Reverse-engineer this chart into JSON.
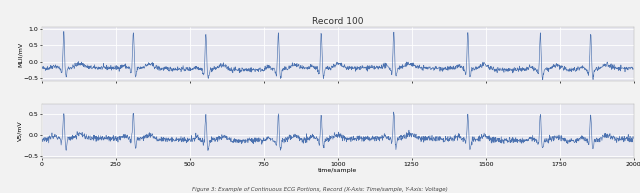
{
  "title": "Record 100",
  "xlabel": "time/sample",
  "ylabel1": "MLII/mV",
  "ylabel2": "V5/mV",
  "xlim": [
    0,
    2000
  ],
  "ylim1": [
    -0.6,
    1.05
  ],
  "ylim2": [
    -0.55,
    0.75
  ],
  "yticks1": [
    -0.5,
    0.0,
    0.5,
    1.0
  ],
  "yticks2": [
    -0.5,
    0.0,
    0.5
  ],
  "xticks": [
    0,
    250,
    500,
    750,
    1000,
    1250,
    1500,
    1750,
    2000
  ],
  "line_color": "#4c72b0",
  "bg_color": "#e8e8f0",
  "grid_color": "#ffffff",
  "fig_bg": "#f2f2f2",
  "caption": "Figure 3: Example of Continuous ECG Portions, Record (X-Axis: Time/sample, Y-Axis: Voltage)",
  "n_points": 2000,
  "seed": 42
}
